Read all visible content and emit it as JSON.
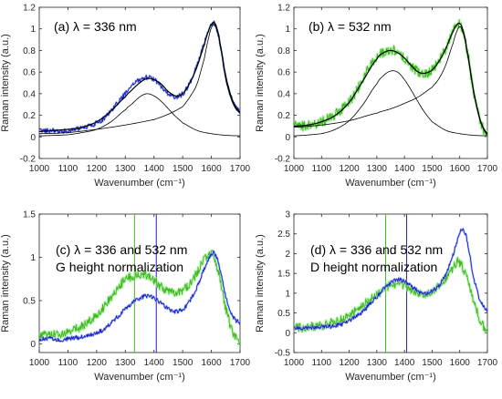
{
  "chart_data": [
    {
      "id": "a",
      "type": "line",
      "annotation": [
        "(a) λ = 336 nm"
      ],
      "xlabel": "Wavenumber (cm⁻¹)",
      "ylabel": "Raman intensity (a.u.)",
      "xlim": [
        1000,
        1700
      ],
      "ylim": [
        -0.2,
        1.2
      ],
      "xticks": [
        1000,
        1100,
        1200,
        1300,
        1400,
        1500,
        1600,
        1700
      ],
      "yticks": [
        -0.2,
        0,
        0.2,
        0.4,
        0.6,
        0.8,
        1,
        1.2
      ],
      "ytick_labels": [
        "-0.2",
        "0",
        "0.2",
        "0.4",
        "0.6",
        "0.8",
        "1",
        "1.2"
      ],
      "grid": false,
      "colors": {
        "data": "#2020c0",
        "data_halo": "#8fb4ff",
        "fit": "#000000"
      },
      "series": [
        {
          "role": "spectrum",
          "x": [
            1000,
            1025,
            1050,
            1075,
            1100,
            1125,
            1150,
            1175,
            1200,
            1225,
            1250,
            1275,
            1300,
            1325,
            1350,
            1375,
            1400,
            1425,
            1450,
            1475,
            1500,
            1525,
            1550,
            1575,
            1590,
            1600,
            1610,
            1620,
            1630,
            1650,
            1675,
            1700
          ],
          "y": [
            0.06,
            0.06,
            0.06,
            0.05,
            0.06,
            0.07,
            0.08,
            0.1,
            0.13,
            0.17,
            0.24,
            0.32,
            0.4,
            0.48,
            0.53,
            0.55,
            0.53,
            0.47,
            0.4,
            0.37,
            0.4,
            0.5,
            0.66,
            0.86,
            0.98,
            1.04,
            1.05,
            0.99,
            0.86,
            0.55,
            0.32,
            0.24
          ]
        },
        {
          "role": "fit-total",
          "x": [
            1000,
            1050,
            1100,
            1150,
            1200,
            1250,
            1300,
            1325,
            1350,
            1375,
            1400,
            1425,
            1450,
            1475,
            1500,
            1525,
            1550,
            1575,
            1590,
            1600,
            1610,
            1620,
            1630,
            1650,
            1675,
            1700
          ],
          "y": [
            0.05,
            0.06,
            0.07,
            0.09,
            0.14,
            0.24,
            0.37,
            0.44,
            0.5,
            0.54,
            0.53,
            0.49,
            0.42,
            0.38,
            0.4,
            0.5,
            0.65,
            0.85,
            0.98,
            1.04,
            1.06,
            1.0,
            0.87,
            0.56,
            0.33,
            0.23
          ]
        },
        {
          "role": "fit-D",
          "x": [
            1000,
            1100,
            1150,
            1200,
            1250,
            1300,
            1325,
            1350,
            1375,
            1400,
            1425,
            1450,
            1475,
            1500,
            1550,
            1600,
            1650,
            1700
          ],
          "y": [
            0.01,
            0.02,
            0.04,
            0.07,
            0.14,
            0.25,
            0.31,
            0.37,
            0.4,
            0.38,
            0.33,
            0.26,
            0.19,
            0.13,
            0.06,
            0.03,
            0.015,
            0.01
          ]
        },
        {
          "role": "fit-G",
          "x": [
            1000,
            1100,
            1200,
            1300,
            1400,
            1450,
            1500,
            1525,
            1550,
            1575,
            1590,
            1600,
            1610,
            1620,
            1630,
            1650,
            1675,
            1700
          ],
          "y": [
            0.03,
            0.04,
            0.07,
            0.11,
            0.16,
            0.21,
            0.28,
            0.37,
            0.49,
            0.72,
            0.91,
            1.01,
            1.04,
            0.98,
            0.85,
            0.53,
            0.31,
            0.22
          ]
        }
      ]
    },
    {
      "id": "b",
      "type": "line",
      "annotation": [
        "(b) λ = 532 nm"
      ],
      "xlabel": "Wavenumber (cm⁻¹)",
      "ylabel": "Raman intensity (a.u.)",
      "xlim": [
        1000,
        1700
      ],
      "ylim": [
        -0.2,
        1.2
      ],
      "xticks": [
        1000,
        1100,
        1200,
        1300,
        1400,
        1500,
        1600,
        1700
      ],
      "yticks": [
        -0.2,
        0,
        0.2,
        0.4,
        0.6,
        0.8,
        1,
        1.2
      ],
      "ytick_labels": [
        "-0.2",
        "0",
        "0.2",
        "0.4",
        "0.6",
        "0.8",
        "1",
        "1.2"
      ],
      "grid": false,
      "colors": {
        "data": "#40b820",
        "data_halo": "#a8f0a0",
        "fit": "#000000"
      },
      "series": [
        {
          "role": "spectrum",
          "x": [
            1000,
            1025,
            1050,
            1075,
            1100,
            1125,
            1150,
            1175,
            1200,
            1225,
            1250,
            1275,
            1300,
            1325,
            1350,
            1375,
            1400,
            1425,
            1450,
            1475,
            1500,
            1525,
            1550,
            1575,
            1590,
            1600,
            1610,
            1625,
            1650,
            1675,
            1700
          ],
          "y": [
            0.1,
            0.1,
            0.11,
            0.12,
            0.14,
            0.17,
            0.21,
            0.26,
            0.33,
            0.42,
            0.54,
            0.65,
            0.74,
            0.78,
            0.8,
            0.79,
            0.73,
            0.66,
            0.6,
            0.59,
            0.62,
            0.7,
            0.82,
            0.97,
            1.03,
            1.04,
            0.99,
            0.82,
            0.42,
            0.14,
            0.02
          ]
        },
        {
          "role": "fit-total",
          "x": [
            1000,
            1050,
            1100,
            1150,
            1200,
            1250,
            1300,
            1325,
            1350,
            1375,
            1400,
            1425,
            1450,
            1475,
            1500,
            1525,
            1550,
            1575,
            1590,
            1600,
            1610,
            1625,
            1650,
            1675,
            1700
          ],
          "y": [
            0.1,
            0.11,
            0.14,
            0.2,
            0.32,
            0.52,
            0.72,
            0.78,
            0.8,
            0.78,
            0.73,
            0.66,
            0.6,
            0.59,
            0.62,
            0.7,
            0.82,
            0.97,
            1.04,
            1.05,
            1.0,
            0.82,
            0.43,
            0.15,
            0.03
          ]
        },
        {
          "role": "fit-D",
          "x": [
            1000,
            1100,
            1150,
            1200,
            1250,
            1300,
            1325,
            1350,
            1375,
            1400,
            1425,
            1450,
            1475,
            1500,
            1550,
            1600,
            1650,
            1700
          ],
          "y": [
            0.01,
            0.03,
            0.07,
            0.15,
            0.3,
            0.49,
            0.57,
            0.61,
            0.6,
            0.53,
            0.43,
            0.32,
            0.22,
            0.14,
            0.06,
            0.03,
            0.015,
            0.01
          ]
        },
        {
          "role": "fit-G",
          "x": [
            1000,
            1100,
            1200,
            1300,
            1350,
            1400,
            1450,
            1500,
            1525,
            1550,
            1575,
            1590,
            1600,
            1610,
            1625,
            1650,
            1675,
            1700
          ],
          "y": [
            0.09,
            0.11,
            0.15,
            0.22,
            0.26,
            0.31,
            0.37,
            0.46,
            0.54,
            0.67,
            0.86,
            0.98,
            1.02,
            0.98,
            0.8,
            0.41,
            0.14,
            0.02
          ]
        }
      ]
    },
    {
      "id": "c",
      "type": "line",
      "annotation": [
        "(c) λ = 336 and 532 nm",
        "G height normalization"
      ],
      "xlabel": "Wavenumber (cm⁻¹)",
      "ylabel": "Raman intensity (a.u.)",
      "xlim": [
        1000,
        1700
      ],
      "ylim": [
        -0.1,
        1.5
      ],
      "xticks": [
        1000,
        1100,
        1200,
        1300,
        1400,
        1500,
        1600,
        1700
      ],
      "yticks": [
        0,
        0.5,
        1,
        1.5
      ],
      "ytick_labels": [
        "0",
        "0.5",
        "1",
        "1.5"
      ],
      "grid": false,
      "vlines": [
        {
          "x": 1332,
          "color": "#40b820"
        },
        {
          "x": 1408,
          "color": "#2020c0"
        }
      ],
      "colors": {
        "blue": "#2020c0",
        "green": "#40b820",
        "green_halo": "#a8f0a0"
      },
      "series": [
        {
          "role": "green-532nm",
          "x": [
            1000,
            1025,
            1050,
            1075,
            1100,
            1125,
            1150,
            1175,
            1200,
            1225,
            1250,
            1275,
            1300,
            1325,
            1350,
            1375,
            1400,
            1425,
            1450,
            1475,
            1500,
            1525,
            1550,
            1575,
            1590,
            1600,
            1610,
            1625,
            1650,
            1675,
            1700
          ],
          "y": [
            0.1,
            0.1,
            0.11,
            0.12,
            0.14,
            0.17,
            0.21,
            0.26,
            0.33,
            0.42,
            0.54,
            0.65,
            0.74,
            0.78,
            0.8,
            0.79,
            0.73,
            0.66,
            0.6,
            0.59,
            0.62,
            0.7,
            0.82,
            0.97,
            1.03,
            1.04,
            0.99,
            0.82,
            0.42,
            0.14,
            0.02
          ]
        },
        {
          "role": "blue-336nm",
          "x": [
            1000,
            1025,
            1050,
            1075,
            1100,
            1125,
            1150,
            1175,
            1200,
            1225,
            1250,
            1275,
            1300,
            1325,
            1350,
            1375,
            1400,
            1425,
            1450,
            1475,
            1500,
            1525,
            1550,
            1575,
            1590,
            1600,
            1610,
            1620,
            1630,
            1650,
            1675,
            1700
          ],
          "y": [
            0.06,
            0.06,
            0.06,
            0.05,
            0.06,
            0.07,
            0.08,
            0.1,
            0.13,
            0.17,
            0.24,
            0.32,
            0.4,
            0.48,
            0.53,
            0.55,
            0.53,
            0.47,
            0.4,
            0.37,
            0.4,
            0.5,
            0.66,
            0.86,
            0.98,
            1.04,
            1.05,
            0.99,
            0.86,
            0.55,
            0.32,
            0.24
          ]
        }
      ]
    },
    {
      "id": "d",
      "type": "line",
      "annotation": [
        "(d) λ = 336 and 532 nm",
        "D height normalization"
      ],
      "xlabel": "Wavenumber (cm⁻¹)",
      "ylabel": "Raman intensity (a.u.)",
      "xlim": [
        1000,
        1700
      ],
      "ylim": [
        -0.5,
        3.0
      ],
      "xticks": [
        1000,
        1100,
        1200,
        1300,
        1400,
        1500,
        1600,
        1700
      ],
      "yticks": [
        -0.5,
        0,
        0.5,
        1,
        1.5,
        2,
        2.5,
        3
      ],
      "ytick_labels": [
        "-0.5",
        "0",
        "0.5",
        "1",
        "1.5",
        "2",
        "2.5",
        "3"
      ],
      "grid": false,
      "vlines": [
        {
          "x": 1332,
          "color": "#40b820"
        },
        {
          "x": 1408,
          "color": "#2020c0"
        }
      ],
      "colors": {
        "blue": "#2020c0",
        "green": "#40b820",
        "green_halo": "#a8f0a0"
      },
      "series": [
        {
          "role": "green-532nm",
          "x": [
            1000,
            1050,
            1100,
            1150,
            1200,
            1250,
            1300,
            1325,
            1350,
            1375,
            1400,
            1425,
            1450,
            1475,
            1500,
            1525,
            1550,
            1575,
            1590,
            1600,
            1625,
            1650,
            1675,
            1700
          ],
          "y": [
            0.12,
            0.14,
            0.18,
            0.28,
            0.45,
            0.7,
            0.95,
            1.1,
            1.2,
            1.25,
            1.2,
            1.1,
            1.0,
            0.98,
            1.05,
            1.18,
            1.38,
            1.62,
            1.78,
            1.76,
            1.4,
            0.8,
            0.3,
            0.05
          ]
        },
        {
          "role": "blue-336nm",
          "x": [
            1000,
            1050,
            1100,
            1150,
            1200,
            1250,
            1300,
            1325,
            1350,
            1375,
            1400,
            1425,
            1450,
            1475,
            1500,
            1525,
            1550,
            1575,
            1590,
            1600,
            1610,
            1620,
            1630,
            1650,
            1675,
            1700
          ],
          "y": [
            0.12,
            0.12,
            0.14,
            0.18,
            0.3,
            0.55,
            0.9,
            1.1,
            1.25,
            1.33,
            1.3,
            1.18,
            1.05,
            1.0,
            1.05,
            1.2,
            1.48,
            1.95,
            2.3,
            2.55,
            2.62,
            2.5,
            2.2,
            1.4,
            0.8,
            0.55
          ]
        }
      ]
    }
  ]
}
